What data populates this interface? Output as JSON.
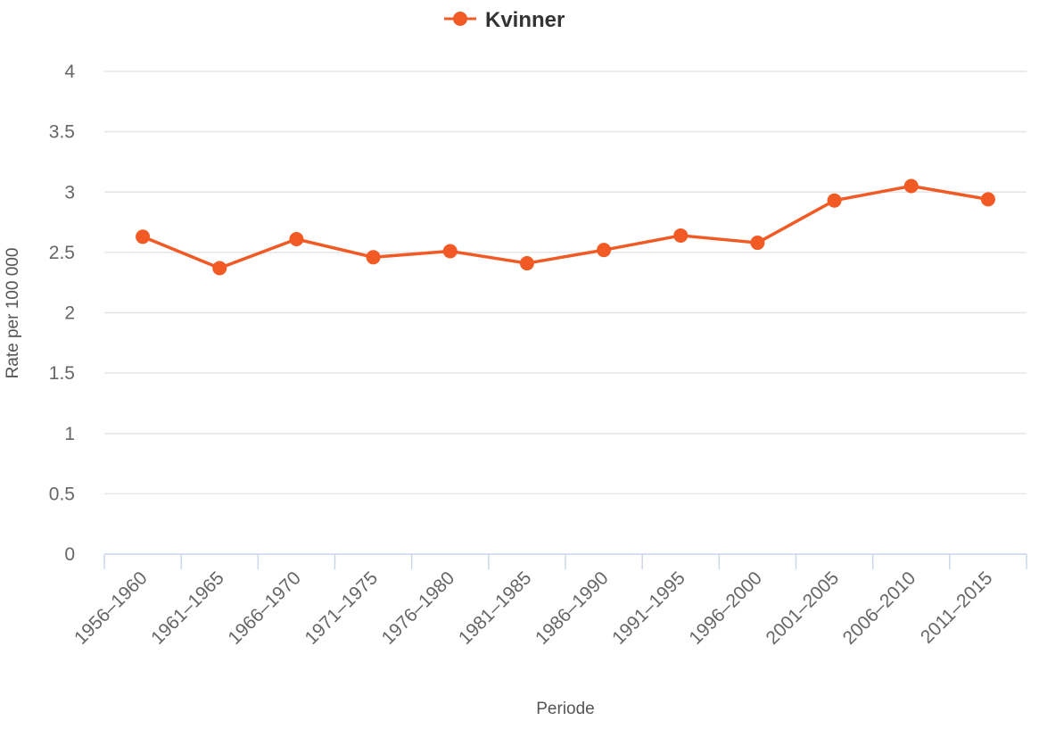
{
  "chart_data": {
    "type": "line",
    "categories": [
      "1956–1960",
      "1961–1965",
      "1966–1970",
      "1971–1975",
      "1976–1980",
      "1981–1985",
      "1986–1990",
      "1991–1995",
      "1996–2000",
      "2001–2005",
      "2006–2010",
      "2011–2015"
    ],
    "series": [
      {
        "name": "Kvinner",
        "values": [
          2.63,
          2.37,
          2.61,
          2.46,
          2.51,
          2.41,
          2.52,
          2.64,
          2.58,
          2.93,
          3.05,
          2.94
        ],
        "color": "#f15a24"
      }
    ],
    "xlabel": "Periode",
    "ylabel": "Rate per 100 000",
    "ylim": [
      0,
      4
    ],
    "yticks": [
      "0",
      "0.5",
      "1",
      "1.5",
      "2",
      "2.5",
      "3",
      "3.5",
      "4"
    ],
    "grid": true,
    "legend_position": "top-center"
  }
}
